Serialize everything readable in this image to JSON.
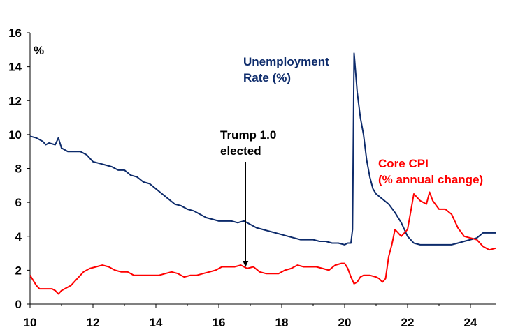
{
  "chart_data": {
    "type": "line",
    "title": "",
    "xlabel": "",
    "ylabel": "%",
    "xlim": [
      10,
      24.8
    ],
    "ylim": [
      0,
      16
    ],
    "grid": false,
    "x_ticks": [
      10,
      12,
      14,
      16,
      18,
      20,
      22,
      24
    ],
    "x_tick_labels": [
      "10",
      "12",
      "14",
      "16",
      "18",
      "20",
      "22",
      "24"
    ],
    "y_ticks": [
      0,
      2,
      4,
      6,
      8,
      10,
      12,
      14,
      16
    ],
    "y_tick_labels": [
      "0",
      "2",
      "4",
      "6",
      "8",
      "10",
      "12",
      "14",
      "16"
    ],
    "colors": {
      "unemployment": "#0d2b6b",
      "core_cpi": "#ff0000",
      "annotation": "#000000"
    },
    "series": [
      {
        "name": "Unemployment Rate (%)",
        "key": "unemployment",
        "x": [
          10.0,
          10.2,
          10.4,
          10.5,
          10.6,
          10.8,
          10.9,
          11.0,
          11.2,
          11.4,
          11.6,
          11.8,
          12.0,
          12.2,
          12.4,
          12.6,
          12.8,
          13.0,
          13.2,
          13.4,
          13.6,
          13.8,
          14.0,
          14.2,
          14.4,
          14.6,
          14.8,
          15.0,
          15.2,
          15.4,
          15.6,
          15.8,
          16.0,
          16.2,
          16.4,
          16.6,
          16.8,
          17.0,
          17.2,
          17.4,
          17.6,
          17.8,
          18.0,
          18.2,
          18.4,
          18.6,
          18.8,
          19.0,
          19.2,
          19.4,
          19.6,
          19.8,
          20.0,
          20.1,
          20.2,
          20.25,
          20.3,
          20.4,
          20.5,
          20.6,
          20.7,
          20.8,
          20.9,
          21.0,
          21.2,
          21.4,
          21.6,
          21.8,
          22.0,
          22.2,
          22.4,
          22.6,
          22.8,
          23.0,
          23.2,
          23.4,
          23.6,
          23.8,
          24.0,
          24.2,
          24.4,
          24.6,
          24.8
        ],
        "values": [
          9.9,
          9.8,
          9.6,
          9.4,
          9.5,
          9.4,
          9.8,
          9.2,
          9.0,
          9.0,
          9.0,
          8.8,
          8.4,
          8.3,
          8.2,
          8.1,
          7.9,
          7.9,
          7.6,
          7.5,
          7.2,
          7.1,
          6.8,
          6.5,
          6.2,
          5.9,
          5.8,
          5.6,
          5.5,
          5.3,
          5.1,
          5.0,
          4.9,
          4.9,
          4.9,
          4.8,
          4.9,
          4.7,
          4.5,
          4.4,
          4.3,
          4.2,
          4.1,
          4.0,
          3.9,
          3.8,
          3.8,
          3.8,
          3.7,
          3.7,
          3.6,
          3.6,
          3.5,
          3.6,
          3.6,
          4.4,
          14.8,
          12.5,
          11.0,
          10.0,
          8.5,
          7.5,
          6.8,
          6.5,
          6.2,
          5.9,
          5.4,
          4.8,
          4.0,
          3.6,
          3.5,
          3.5,
          3.5,
          3.5,
          3.5,
          3.5,
          3.6,
          3.7,
          3.8,
          3.9,
          4.2,
          4.2,
          4.2
        ]
      },
      {
        "name": "Core CPI (% annual change)",
        "key": "core_cpi",
        "x": [
          10.0,
          10.1,
          10.2,
          10.3,
          10.5,
          10.7,
          10.8,
          10.9,
          11.0,
          11.1,
          11.3,
          11.5,
          11.7,
          11.9,
          12.1,
          12.3,
          12.5,
          12.7,
          12.9,
          13.1,
          13.3,
          13.5,
          13.7,
          13.9,
          14.1,
          14.3,
          14.5,
          14.7,
          14.9,
          15.1,
          15.3,
          15.5,
          15.7,
          15.9,
          16.1,
          16.3,
          16.5,
          16.7,
          16.9,
          17.1,
          17.3,
          17.5,
          17.7,
          17.9,
          18.1,
          18.3,
          18.5,
          18.7,
          18.9,
          19.1,
          19.3,
          19.5,
          19.7,
          19.9,
          20.0,
          20.1,
          20.2,
          20.3,
          20.4,
          20.5,
          20.6,
          20.8,
          21.0,
          21.1,
          21.2,
          21.3,
          21.4,
          21.5,
          21.6,
          21.8,
          22.0,
          22.2,
          22.4,
          22.6,
          22.7,
          22.8,
          23.0,
          23.2,
          23.4,
          23.6,
          23.8,
          24.0,
          24.2,
          24.4,
          24.6,
          24.8
        ],
        "values": [
          1.7,
          1.4,
          1.1,
          0.9,
          0.9,
          0.9,
          0.8,
          0.6,
          0.8,
          0.9,
          1.1,
          1.5,
          1.9,
          2.1,
          2.2,
          2.3,
          2.2,
          2.0,
          1.9,
          1.9,
          1.7,
          1.7,
          1.7,
          1.7,
          1.7,
          1.8,
          1.9,
          1.8,
          1.6,
          1.7,
          1.7,
          1.8,
          1.9,
          2.0,
          2.2,
          2.2,
          2.2,
          2.3,
          2.1,
          2.2,
          1.9,
          1.8,
          1.8,
          1.8,
          2.0,
          2.1,
          2.3,
          2.2,
          2.2,
          2.2,
          2.1,
          2.0,
          2.3,
          2.4,
          2.4,
          2.1,
          1.6,
          1.2,
          1.3,
          1.6,
          1.7,
          1.7,
          1.6,
          1.5,
          1.3,
          1.5,
          2.8,
          3.5,
          4.4,
          4.0,
          4.4,
          6.5,
          6.1,
          5.9,
          6.6,
          6.1,
          5.6,
          5.6,
          5.3,
          4.5,
          4.0,
          3.9,
          3.8,
          3.4,
          3.2,
          3.3
        ]
      }
    ],
    "annotations": [
      {
        "id": "unemp-label",
        "lines": [
          "Unemployment",
          "Rate (%)"
        ],
        "color_key": "unemployment"
      },
      {
        "id": "cpi-label",
        "lines": [
          "Core CPI",
          "(% annual change)"
        ],
        "color_key": "core_cpi"
      },
      {
        "id": "trump-label",
        "lines": [
          "Trump 1.0",
          "elected"
        ],
        "color_key": "annotation",
        "arrow_x": 16.85,
        "arrow_y_end": 2.1
      }
    ]
  }
}
